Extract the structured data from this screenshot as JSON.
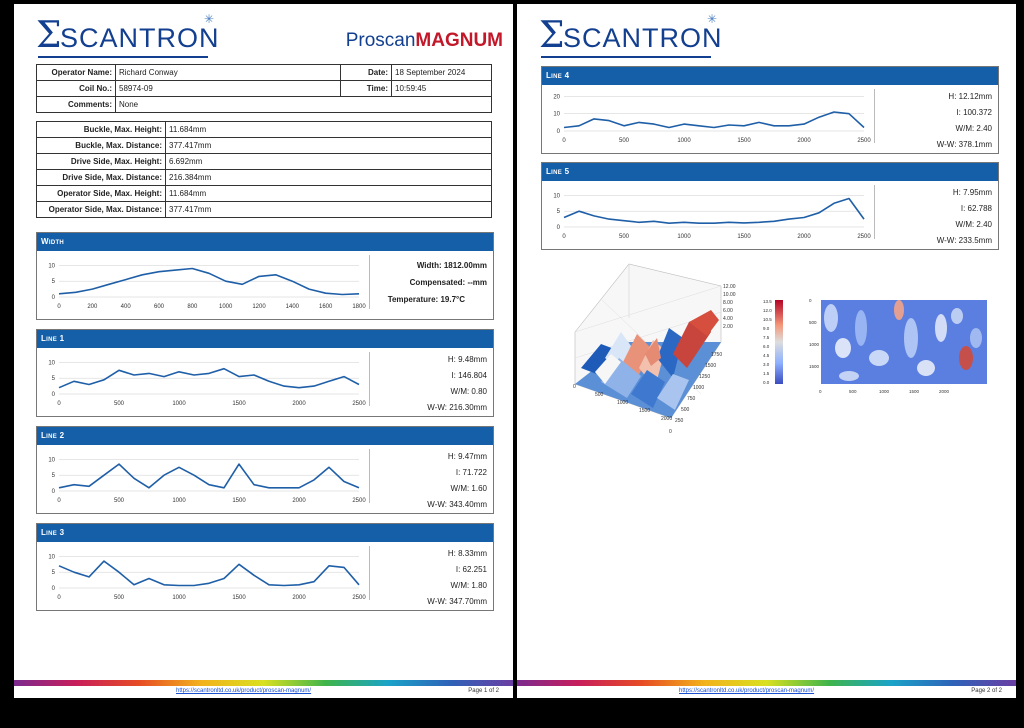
{
  "brand": {
    "company": "SCANTRON",
    "product_a": "Proscan",
    "product_b": "MAGNUM"
  },
  "header": {
    "operator_label": "Operator Name:",
    "operator": "Richard Conway",
    "date_label": "Date:",
    "date": "18 September 2024",
    "coil_label": "Coil No.:",
    "coil": "58974-09",
    "time_label": "Time:",
    "time": "10:59:45",
    "comments_label": "Comments:",
    "comments": "None"
  },
  "summary": [
    {
      "label": "Buckle, Max. Height:",
      "value": "11.684mm"
    },
    {
      "label": "Buckle, Max. Distance:",
      "value": "377.417mm"
    },
    {
      "label": "Drive Side, Max. Height:",
      "value": "6.692mm"
    },
    {
      "label": "Drive Side, Max. Distance:",
      "value": "216.384mm"
    },
    {
      "label": "Operator Side, Max. Height:",
      "value": "11.684mm"
    },
    {
      "label": "Operator Side, Max. Distance:",
      "value": "377.417mm"
    }
  ],
  "width_panel": {
    "title": "Width",
    "s1": "Width: 1812.00mm",
    "s2": "Compensated: --mm",
    "s3": "Temperature: 19.7°C"
  },
  "lines": [
    {
      "title": "Line 1",
      "h": "H: 9.48mm",
      "i": "I: 146.804",
      "wm": "W/M: 0.80",
      "ww": "W-W: 216.30mm"
    },
    {
      "title": "Line 2",
      "h": "H: 9.47mm",
      "i": "I: 71.722",
      "wm": "W/M: 1.60",
      "ww": "W-W: 343.40mm"
    },
    {
      "title": "Line 3",
      "h": "H: 8.33mm",
      "i": "I: 62.251",
      "wm": "W/M: 1.80",
      "ww": "W-W: 347.70mm"
    },
    {
      "title": "Line 4",
      "h": "H: 12.12mm",
      "i": "I: 100.372",
      "wm": "W/M: 2.40",
      "ww": "W-W: 378.1mm"
    },
    {
      "title": "Line 5",
      "h": "H: 7.95mm",
      "i": "I: 62.788",
      "wm": "W/M: 2.40",
      "ww": "W-W: 233.5mm"
    }
  ],
  "footer": {
    "url": "https://scantronltd.co.uk/product/proscan-magnum/",
    "page1": "Page 1 of 2",
    "page2": "Page 2 of 2"
  },
  "chart_data": [
    {
      "type": "line",
      "title": "Width",
      "x": [
        0,
        100,
        200,
        300,
        400,
        500,
        600,
        700,
        800,
        900,
        1000,
        1100,
        1200,
        1300,
        1400,
        1500,
        1600,
        1700,
        1800
      ],
      "values": [
        1,
        1.5,
        2.5,
        4,
        5.5,
        7,
        8,
        8.5,
        9,
        7.5,
        5,
        4,
        6.5,
        7,
        5,
        2.5,
        1.2,
        0.8,
        1
      ],
      "ylim": [
        0,
        12
      ],
      "xticks": [
        0,
        200,
        400,
        600,
        800,
        1000,
        1200,
        1400,
        1600,
        1800
      ],
      "yticks": [
        0,
        5,
        10
      ],
      "color": "#1f5fa8"
    },
    {
      "type": "line",
      "title": "Line 1",
      "x": [
        0,
        125,
        250,
        375,
        500,
        625,
        750,
        875,
        1000,
        1125,
        1250,
        1375,
        1500,
        1625,
        1750,
        1875,
        2000,
        2125,
        2250,
        2375,
        2500
      ],
      "values": [
        2,
        4,
        3,
        4.5,
        7.5,
        6,
        6.5,
        5.5,
        7,
        6,
        6.5,
        8,
        5.5,
        6,
        4,
        2.5,
        2,
        2.5,
        4,
        5.5,
        3
      ],
      "ylim": [
        0,
        12
      ],
      "xticks": [
        0,
        500,
        1000,
        1500,
        2000,
        2500
      ],
      "yticks": [
        0,
        5,
        10
      ],
      "color": "#1f5fa8"
    },
    {
      "type": "line",
      "title": "Line 2",
      "x": [
        0,
        125,
        250,
        375,
        500,
        625,
        750,
        875,
        1000,
        1125,
        1250,
        1375,
        1500,
        1625,
        1750,
        1875,
        2000,
        2125,
        2250,
        2375,
        2500
      ],
      "values": [
        1,
        2,
        1.5,
        5,
        8.5,
        4,
        1,
        5,
        7.5,
        5,
        2,
        1,
        8.5,
        2,
        1,
        1,
        1,
        3.5,
        7.5,
        3,
        1
      ],
      "ylim": [
        0,
        12
      ],
      "xticks": [
        0,
        500,
        1000,
        1500,
        2000,
        2500
      ],
      "yticks": [
        0,
        5,
        10
      ],
      "color": "#1f5fa8"
    },
    {
      "type": "line",
      "title": "Line 3",
      "x": [
        0,
        125,
        250,
        375,
        500,
        625,
        750,
        875,
        1000,
        1125,
        1250,
        1375,
        1500,
        1625,
        1750,
        1875,
        2000,
        2125,
        2250,
        2375,
        2500
      ],
      "values": [
        7,
        5,
        3.5,
        8.5,
        5,
        1,
        3,
        1,
        0.8,
        0.8,
        1.5,
        3,
        7.5,
        4,
        1,
        0.8,
        1,
        2,
        7,
        6.5,
        1
      ],
      "ylim": [
        0,
        12
      ],
      "xticks": [
        0,
        500,
        1000,
        1500,
        2000,
        2500
      ],
      "yticks": [
        0,
        5,
        10
      ],
      "color": "#1f5fa8"
    },
    {
      "type": "line",
      "title": "Line 4",
      "x": [
        0,
        125,
        250,
        375,
        500,
        625,
        750,
        875,
        1000,
        1125,
        1250,
        1375,
        1500,
        1625,
        1750,
        1875,
        2000,
        2125,
        2250,
        2375,
        2500
      ],
      "values": [
        2,
        3,
        7,
        6,
        3,
        5,
        4,
        2,
        4,
        3,
        2,
        3.5,
        3,
        5,
        3,
        3,
        4,
        8,
        11,
        10,
        2
      ],
      "ylim": [
        0,
        22
      ],
      "xticks": [
        0,
        500,
        1000,
        1500,
        2000,
        2500
      ],
      "yticks": [
        0,
        10,
        20
      ],
      "color": "#1f5fa8"
    },
    {
      "type": "line",
      "title": "Line 5",
      "x": [
        0,
        125,
        250,
        375,
        500,
        625,
        750,
        875,
        1000,
        1125,
        1250,
        1375,
        1500,
        1625,
        1750,
        1875,
        2000,
        2125,
        2250,
        2375,
        2500
      ],
      "values": [
        3,
        5,
        3.5,
        2.5,
        2,
        1.5,
        1.8,
        1.2,
        1.5,
        1.2,
        1.2,
        1.5,
        1.3,
        1.5,
        1.8,
        2.5,
        3,
        4.5,
        7.5,
        9,
        2.5
      ],
      "ylim": [
        0,
        12
      ],
      "xticks": [
        0,
        500,
        1000,
        1500,
        2000,
        2500
      ],
      "yticks": [
        0,
        5,
        10
      ],
      "color": "#1f5fa8"
    }
  ],
  "surface3d": {
    "zticks": [
      "12.00",
      "10.00",
      "8.00",
      "6.00",
      "4.00",
      "2.00"
    ],
    "yticks": [
      "1750",
      "1500",
      "1250",
      "1000",
      "750",
      "500",
      "250",
      "0"
    ],
    "xticks": [
      "0",
      "500",
      "1000",
      "1500",
      "2000"
    ]
  },
  "heatmap": {
    "cticks": [
      "13.5",
      "12.0",
      "10.5",
      "9.0",
      "7.5",
      "6.0",
      "4.5",
      "3.0",
      "1.5",
      "0.0"
    ],
    "yticks": [
      "0",
      "500",
      "1000",
      "1500"
    ],
    "xticks": [
      "0",
      "500",
      "1000",
      "1500",
      "2000"
    ]
  }
}
